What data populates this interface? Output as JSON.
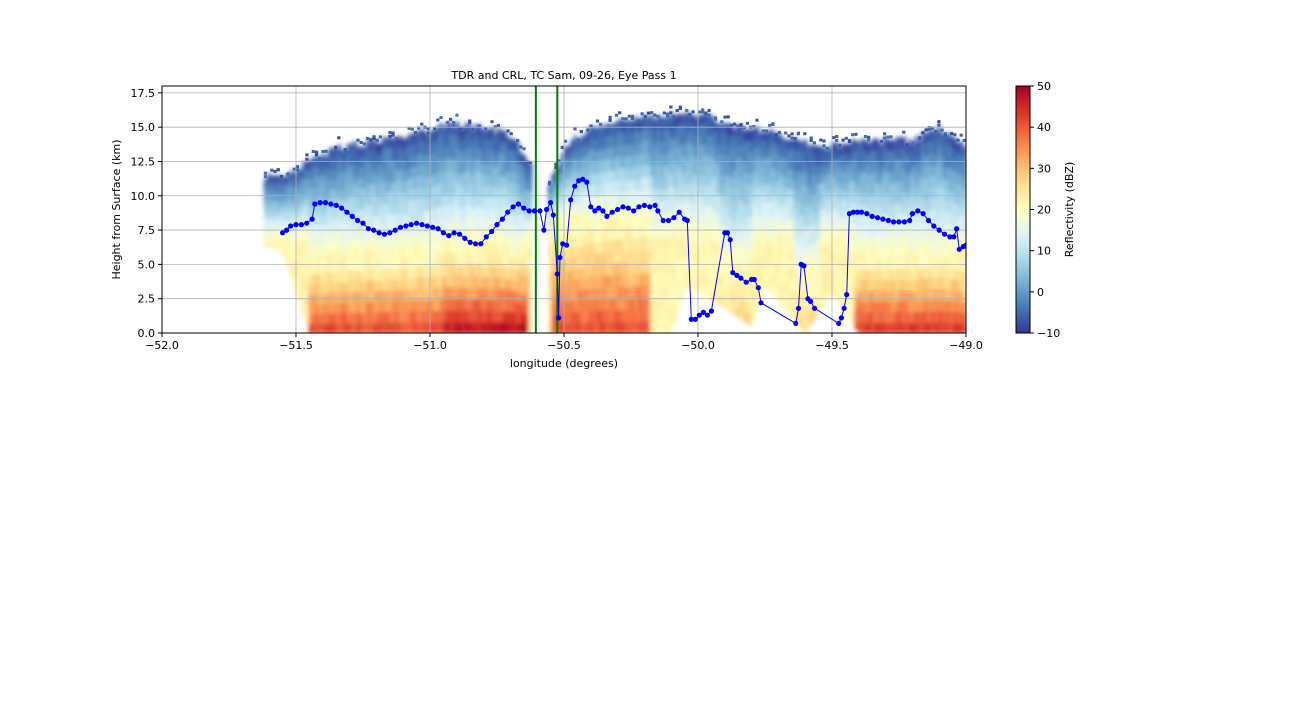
{
  "chart_data": {
    "type": "heatmap",
    "title": "TDR and CRL, TC Sam, 09-26, Eye Pass 1",
    "xlabel": "longitude (degrees)",
    "ylabel": "Height from Surface (km)",
    "xlim": [
      -52.0,
      -49.0
    ],
    "ylim": [
      0.0,
      18.0
    ],
    "x_ticks": [
      -52.0,
      -51.5,
      -51.0,
      -50.5,
      -50.0,
      -49.5,
      -49.0
    ],
    "x_tick_labels": [
      "−52.0",
      "−51.5",
      "−51.0",
      "−50.5",
      "−50.0",
      "−49.5",
      "−49.0"
    ],
    "y_ticks": [
      0.0,
      2.5,
      5.0,
      7.5,
      10.0,
      12.5,
      15.0,
      17.5
    ],
    "y_tick_labels": [
      "0.0",
      "2.5",
      "5.0",
      "7.5",
      "10.0",
      "12.5",
      "15.0",
      "17.5"
    ],
    "grid": true,
    "colorbar": {
      "label": "Reflectivity (dBZ)",
      "range": [
        -10,
        50
      ],
      "ticks": [
        -10,
        0,
        10,
        20,
        30,
        40,
        50
      ],
      "tick_labels": [
        "−10",
        "0",
        "10",
        "20",
        "30",
        "40",
        "50"
      ],
      "colormap": "RdYlBu_r",
      "colors": [
        "#313695",
        "#4575b4",
        "#74add1",
        "#abd9e9",
        "#e0f3f8",
        "#ffffbf",
        "#fee090",
        "#fdae61",
        "#f46d43",
        "#d73027",
        "#a50026"
      ]
    },
    "reflectivity_field": {
      "echo_top_km": [
        [
          -51.55,
          11.5
        ],
        [
          -51.45,
          12.5
        ],
        [
          -51.35,
          13.5
        ],
        [
          -51.2,
          14.0
        ],
        [
          -51.05,
          14.5
        ],
        [
          -50.95,
          15.2
        ],
        [
          -50.8,
          15.0
        ],
        [
          -50.7,
          14.5
        ],
        [
          -50.62,
          12.0
        ],
        [
          -50.55,
          11.0
        ],
        [
          -50.5,
          13.5
        ],
        [
          -50.4,
          15.0
        ],
        [
          -50.2,
          15.7
        ],
        [
          -50.0,
          16.0
        ],
        [
          -49.85,
          15.0
        ],
        [
          -49.7,
          14.5
        ],
        [
          -49.55,
          13.5
        ],
        [
          -49.4,
          14.0
        ],
        [
          -49.2,
          14.0
        ],
        [
          -49.1,
          15.0
        ],
        [
          -49.0,
          13.5
        ]
      ],
      "echo_base_km": [
        [
          -52.0,
          11.0
        ],
        [
          -51.8,
          9.0
        ],
        [
          -51.7,
          7.5
        ],
        [
          -51.65,
          6.5
        ],
        [
          -51.55,
          6.0
        ],
        [
          -51.45,
          0.0
        ],
        [
          -50.65,
          0.0
        ],
        [
          -50.56,
          0.0
        ],
        [
          -50.1,
          0.0
        ],
        [
          -50.05,
          3.5
        ],
        [
          -49.95,
          2.5
        ],
        [
          -49.8,
          0.5
        ],
        [
          -49.75,
          3.5
        ],
        [
          -49.6,
          0.0
        ],
        [
          -49.5,
          3.0
        ],
        [
          -49.4,
          0.0
        ],
        [
          -49.0,
          0.0
        ]
      ],
      "core_segments_dbz": [
        {
          "lon_start": -51.45,
          "lon_end": -50.95,
          "top_km": 5.5,
          "max_dbz": 42
        },
        {
          "lon_start": -50.95,
          "lon_end": -50.63,
          "top_km": 6.0,
          "max_dbz": 48
        },
        {
          "lon_start": -50.55,
          "lon_end": -50.18,
          "top_km": 8.0,
          "max_dbz": 42
        },
        {
          "lon_start": -49.92,
          "lon_end": -49.8,
          "top_km": 4.5,
          "max_dbz": 30
        },
        {
          "lon_start": -49.64,
          "lon_end": -49.55,
          "top_km": 4.0,
          "max_dbz": 28
        },
        {
          "lon_start": -49.42,
          "lon_end": -49.0,
          "top_km": 5.5,
          "max_dbz": 44
        }
      ]
    },
    "crl_line": {
      "color": "#0000ff",
      "marker": "circle",
      "points": [
        [
          -51.55,
          7.3
        ],
        [
          -51.535,
          7.5
        ],
        [
          -51.52,
          7.8
        ],
        [
          -51.5,
          7.9
        ],
        [
          -51.48,
          7.9
        ],
        [
          -51.46,
          8.0
        ],
        [
          -51.44,
          8.3
        ],
        [
          -51.43,
          9.4
        ],
        [
          -51.41,
          9.5
        ],
        [
          -51.39,
          9.5
        ],
        [
          -51.37,
          9.4
        ],
        [
          -51.35,
          9.3
        ],
        [
          -51.33,
          9.1
        ],
        [
          -51.31,
          8.8
        ],
        [
          -51.29,
          8.5
        ],
        [
          -51.27,
          8.2
        ],
        [
          -51.25,
          8.0
        ],
        [
          -51.23,
          7.6
        ],
        [
          -51.21,
          7.5
        ],
        [
          -51.19,
          7.3
        ],
        [
          -51.17,
          7.2
        ],
        [
          -51.15,
          7.3
        ],
        [
          -51.13,
          7.5
        ],
        [
          -51.11,
          7.7
        ],
        [
          -51.09,
          7.8
        ],
        [
          -51.07,
          7.9
        ],
        [
          -51.05,
          8.0
        ],
        [
          -51.03,
          7.9
        ],
        [
          -51.01,
          7.8
        ],
        [
          -50.99,
          7.7
        ],
        [
          -50.97,
          7.6
        ],
        [
          -50.95,
          7.3
        ],
        [
          -50.93,
          7.1
        ],
        [
          -50.91,
          7.3
        ],
        [
          -50.89,
          7.2
        ],
        [
          -50.87,
          6.9
        ],
        [
          -50.85,
          6.6
        ],
        [
          -50.83,
          6.5
        ],
        [
          -50.81,
          6.5
        ],
        [
          -50.79,
          7.0
        ],
        [
          -50.77,
          7.4
        ],
        [
          -50.75,
          7.9
        ],
        [
          -50.73,
          8.3
        ],
        [
          -50.71,
          8.8
        ],
        [
          -50.69,
          9.2
        ],
        [
          -50.67,
          9.4
        ],
        [
          -50.65,
          9.1
        ],
        [
          -50.63,
          8.9
        ],
        [
          -50.61,
          8.9
        ],
        [
          -50.59,
          8.9
        ],
        [
          -50.575,
          7.5
        ],
        [
          -50.565,
          9.0
        ],
        [
          -50.55,
          9.5
        ],
        [
          -50.54,
          8.6
        ],
        [
          -50.525,
          4.3
        ],
        [
          -50.52,
          1.1
        ],
        [
          -50.515,
          5.5
        ],
        [
          -50.505,
          6.5
        ],
        [
          -50.49,
          6.4
        ],
        [
          -50.475,
          9.7
        ],
        [
          -50.46,
          10.7
        ],
        [
          -50.445,
          11.1
        ],
        [
          -50.43,
          11.2
        ],
        [
          -50.415,
          11.0
        ],
        [
          -50.4,
          9.2
        ],
        [
          -50.385,
          8.9
        ],
        [
          -50.37,
          9.1
        ],
        [
          -50.355,
          8.9
        ],
        [
          -50.34,
          8.5
        ],
        [
          -50.32,
          8.8
        ],
        [
          -50.3,
          9.0
        ],
        [
          -50.28,
          9.2
        ],
        [
          -50.26,
          9.1
        ],
        [
          -50.24,
          8.9
        ],
        [
          -50.22,
          9.2
        ],
        [
          -50.2,
          9.3
        ],
        [
          -50.18,
          9.2
        ],
        [
          -50.16,
          9.3
        ],
        [
          -50.15,
          8.9
        ],
        [
          -50.13,
          8.2
        ],
        [
          -50.11,
          8.2
        ],
        [
          -50.09,
          8.4
        ],
        [
          -50.07,
          8.8
        ],
        [
          -50.05,
          8.3
        ],
        [
          -50.04,
          8.2
        ],
        [
          -50.025,
          1.0
        ],
        [
          -50.01,
          1.0
        ],
        [
          -49.995,
          1.3
        ],
        [
          -49.98,
          1.5
        ],
        [
          -49.965,
          1.3
        ],
        [
          -49.95,
          1.6
        ],
        [
          -49.9,
          7.3
        ],
        [
          -49.89,
          7.3
        ],
        [
          -49.88,
          6.8
        ],
        [
          -49.87,
          4.4
        ],
        [
          -49.855,
          4.2
        ],
        [
          -49.84,
          4.0
        ],
        [
          -49.82,
          3.7
        ],
        [
          -49.8,
          3.9
        ],
        [
          -49.79,
          3.9
        ],
        [
          -49.775,
          3.3
        ],
        [
          -49.765,
          2.2
        ],
        [
          -49.635,
          0.7
        ],
        [
          -49.625,
          1.8
        ],
        [
          -49.615,
          5.0
        ],
        [
          -49.605,
          4.9
        ],
        [
          -49.59,
          2.5
        ],
        [
          -49.58,
          2.3
        ],
        [
          -49.565,
          1.8
        ],
        [
          -49.475,
          0.7
        ],
        [
          -49.465,
          1.1
        ],
        [
          -49.455,
          1.8
        ],
        [
          -49.445,
          2.8
        ],
        [
          -49.435,
          8.7
        ],
        [
          -49.42,
          8.8
        ],
        [
          -49.405,
          8.8
        ],
        [
          -49.39,
          8.8
        ],
        [
          -49.37,
          8.7
        ],
        [
          -49.35,
          8.5
        ],
        [
          -49.33,
          8.4
        ],
        [
          -49.31,
          8.3
        ],
        [
          -49.29,
          8.2
        ],
        [
          -49.27,
          8.1
        ],
        [
          -49.25,
          8.1
        ],
        [
          -49.23,
          8.1
        ],
        [
          -49.21,
          8.2
        ],
        [
          -49.2,
          8.7
        ],
        [
          -49.18,
          8.9
        ],
        [
          -49.16,
          8.7
        ],
        [
          -49.14,
          8.2
        ],
        [
          -49.12,
          7.8
        ],
        [
          -49.1,
          7.5
        ],
        [
          -49.08,
          7.2
        ],
        [
          -49.06,
          7.0
        ],
        [
          -49.045,
          7.0
        ],
        [
          -49.035,
          7.6
        ],
        [
          -49.025,
          6.1
        ],
        [
          -49.01,
          6.3
        ],
        [
          -49.0,
          6.4
        ]
      ]
    },
    "vertical_lines": {
      "color": "#008000",
      "x": [
        -50.605,
        -50.525
      ]
    }
  }
}
